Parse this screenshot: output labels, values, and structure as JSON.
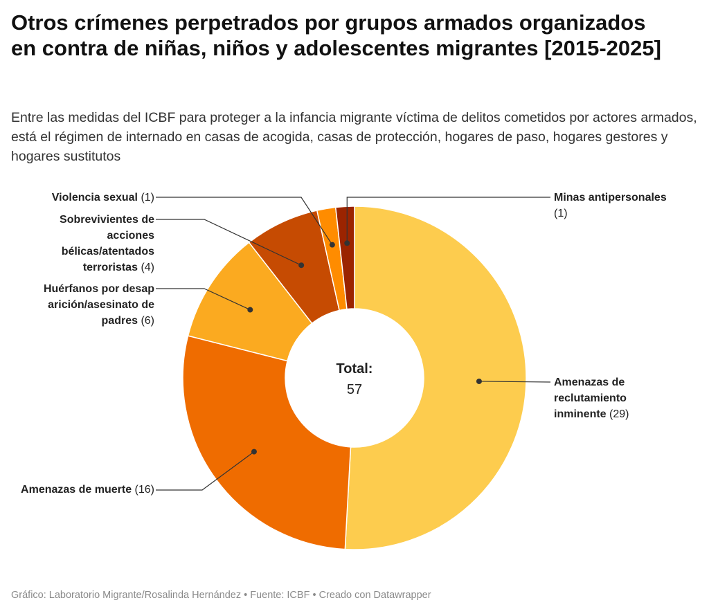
{
  "title": "Otros crímenes perpetrados por grupos armados organizados en contra de niñas, niños y adolescentes migrantes [2015-2025]",
  "subtitle": "Entre las medidas del ICBF para proteger a la infancia migrante víctima de delitos cometidos por actores armados, está el régimen de internado en casas de acogida, casas de protección, hogares de paso, hogares gestores y hogares sustitutos",
  "footer": "Gráfico: Laboratorio Migrante/Rosalinda Hernández • Fuente: ICBF • Creado con Datawrapper",
  "chart_data": {
    "type": "pie",
    "donut": true,
    "center_label": "Total:",
    "center_value": "57",
    "slices": [
      {
        "label": "Amenazas de reclutamiento inminente",
        "value": 29,
        "value_label": "(29)",
        "color": "#fdcc4e"
      },
      {
        "label": "Amenazas de muerte",
        "value": 16,
        "value_label": "(16)",
        "color": "#ef6c00"
      },
      {
        "label": "Huérfanos por desaparición/asesinato de padres",
        "value": 6,
        "value_label": "(6)",
        "color": "#fbaa20"
      },
      {
        "label": "Sobrevivientes de acciones bélicas/atentados terroristas",
        "value": 4,
        "value_label": "(4)",
        "color": "#c64b02"
      },
      {
        "label": "Violencia sexual",
        "value": 1,
        "value_label": "(1)",
        "color": "#ff8c00"
      },
      {
        "label": "Minas antipersonales",
        "value": 1,
        "value_label": "(1)",
        "color": "#9b2400"
      }
    ]
  }
}
